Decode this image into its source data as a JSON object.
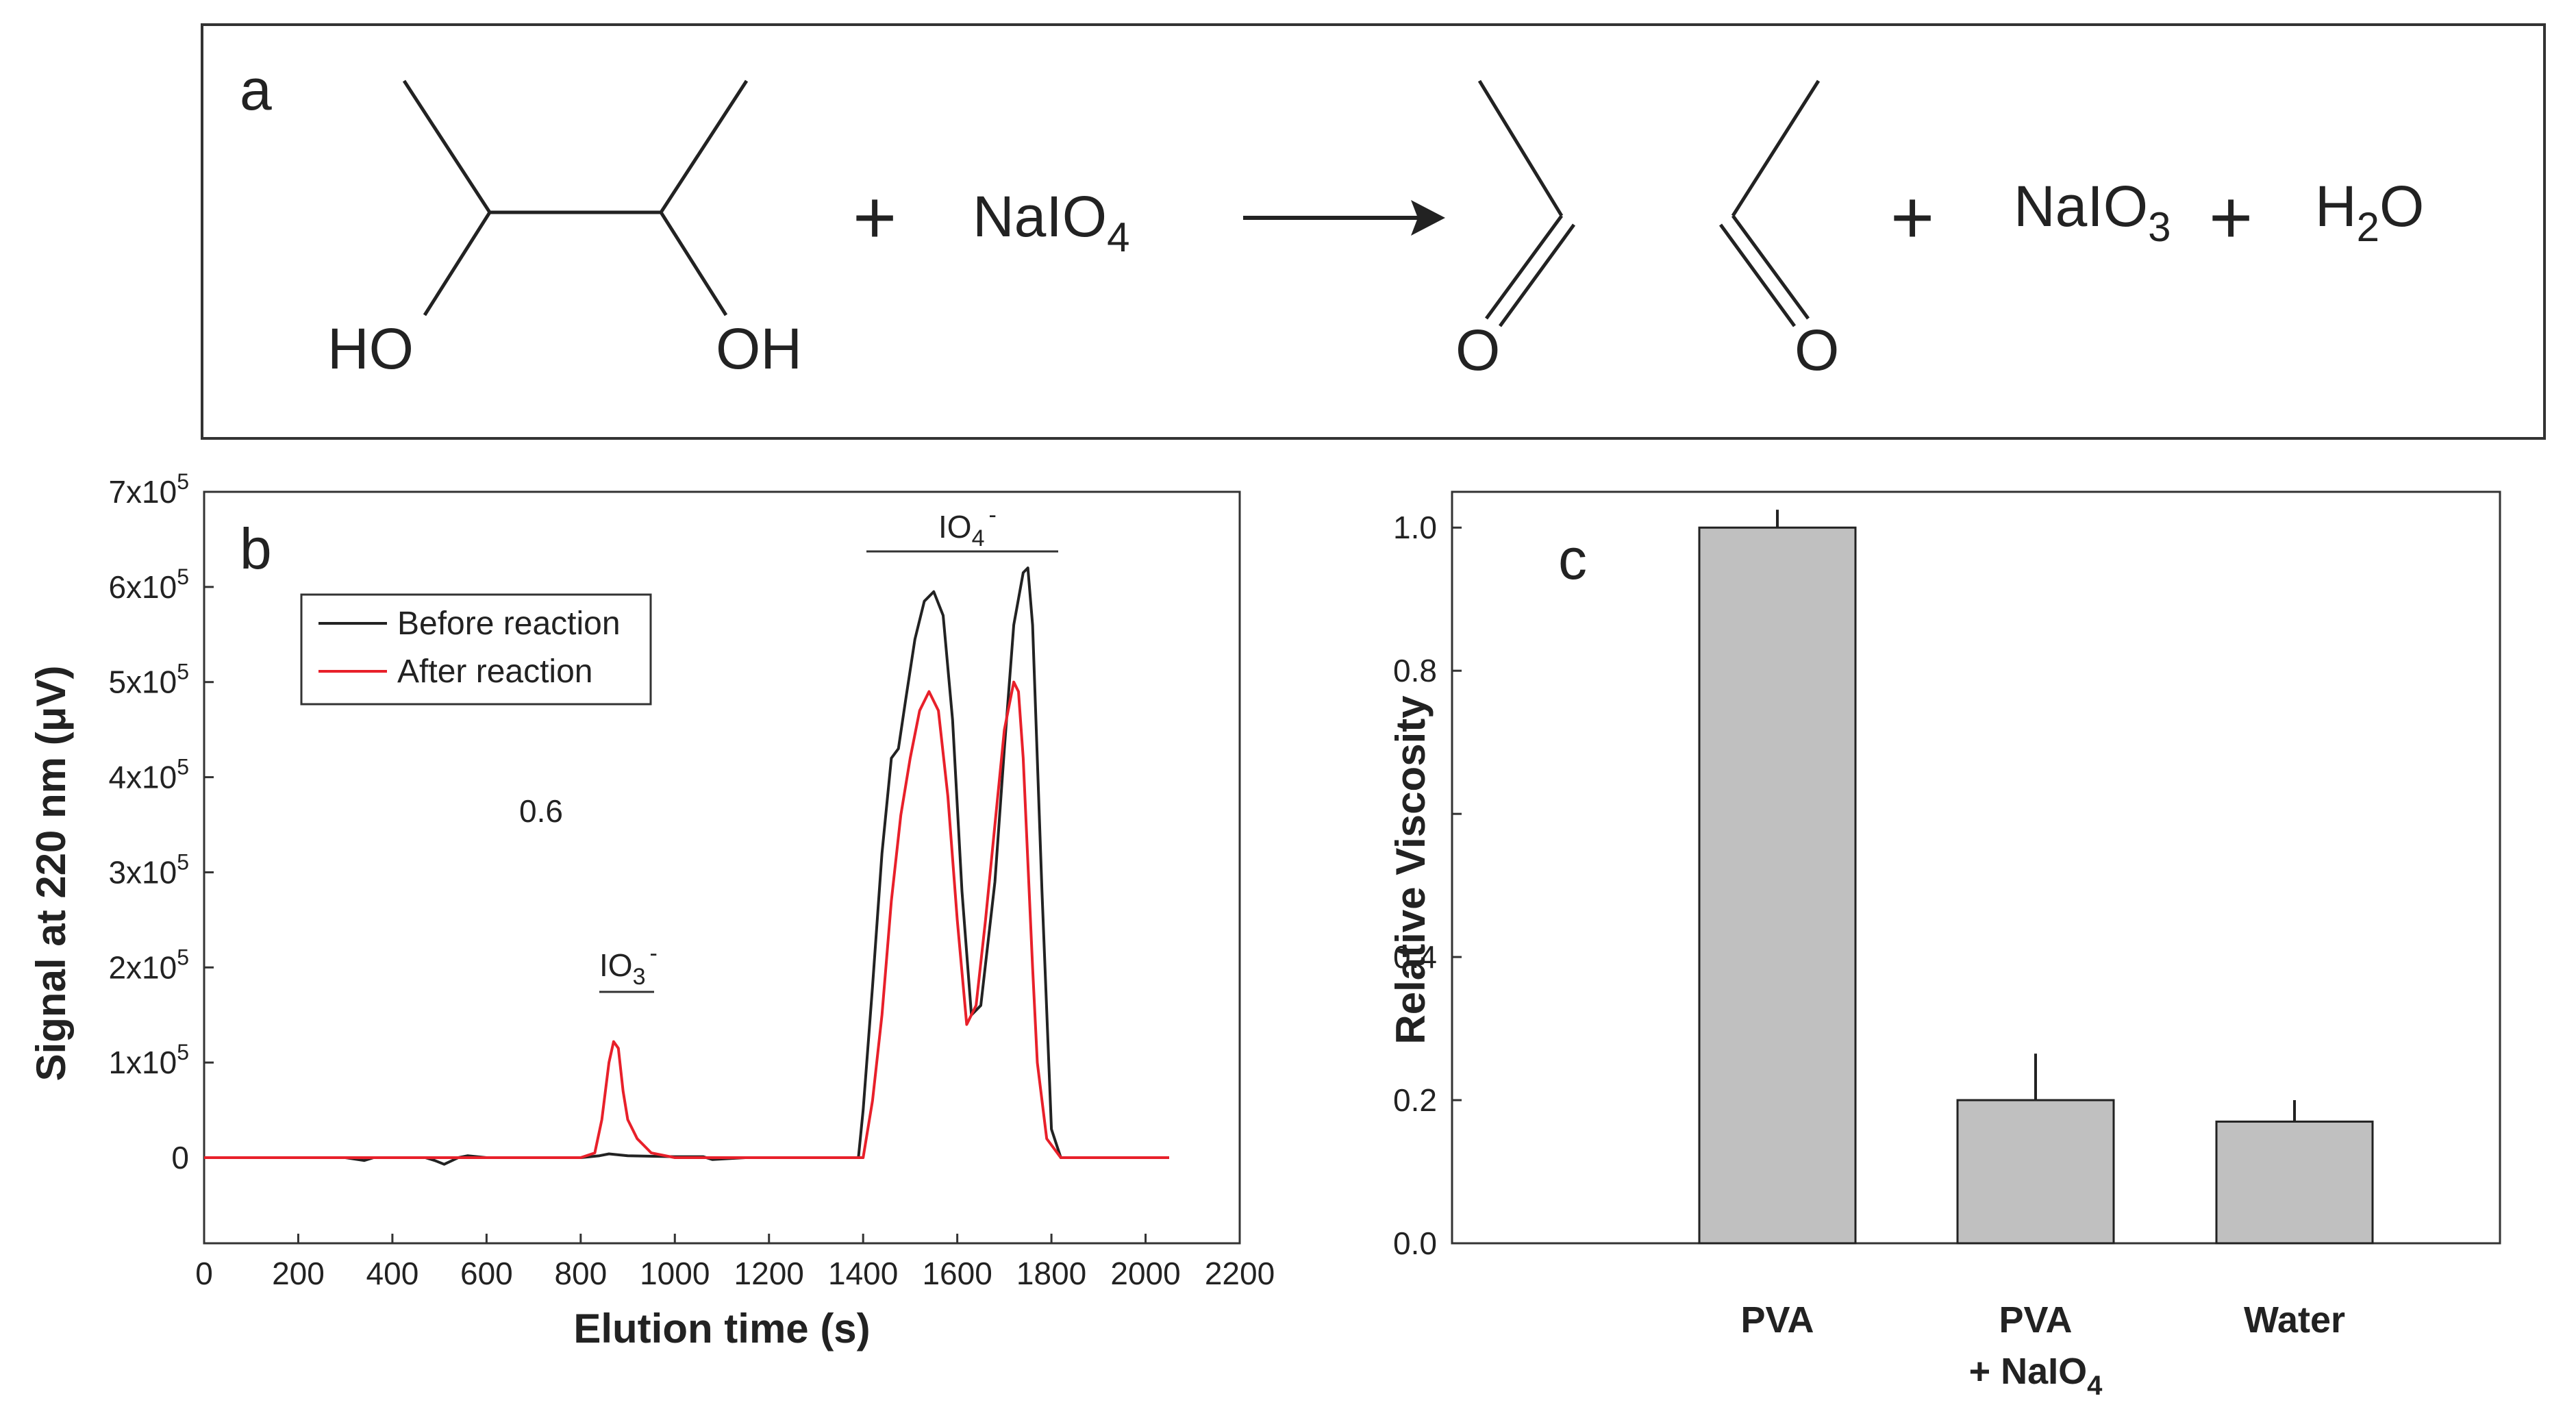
{
  "panel_a": {
    "letter": "a",
    "ho_label": "HO",
    "oh_label": "OH",
    "plus": "+",
    "periodate": {
      "main": "NaIO",
      "sub": "4"
    },
    "o_label": "O",
    "iodate": {
      "main": "NaIO",
      "sub": "3"
    },
    "water": {
      "h": "H",
      "sub": "2",
      "o": "O"
    }
  },
  "chart_data": [
    {
      "panel": "b",
      "type": "line",
      "xlabel": "Elution time (s)",
      "ylabel": "Signal at 220 nm (μV)",
      "xlim": [
        0,
        2200
      ],
      "ylim": [
        -90000,
        700000
      ],
      "x_ticks": [
        "0",
        "200",
        "400",
        "600",
        "800",
        "1000",
        "1200",
        "1400",
        "1600",
        "1800",
        "2000",
        "2200"
      ],
      "x_tick_values": [
        0,
        200,
        400,
        600,
        800,
        1000,
        1200,
        1400,
        1600,
        1800,
        2000,
        2200
      ],
      "y_ticks": [
        {
          "value": 0,
          "base": "0",
          "exp": ""
        },
        {
          "value": 100000,
          "base": "1x10",
          "exp": "5"
        },
        {
          "value": 200000,
          "base": "2x10",
          "exp": "5"
        },
        {
          "value": 300000,
          "base": "3x10",
          "exp": "5"
        },
        {
          "value": 400000,
          "base": "4x10",
          "exp": "5"
        },
        {
          "value": 500000,
          "base": "5x10",
          "exp": "5"
        },
        {
          "value": 600000,
          "base": "6x10",
          "exp": "5"
        },
        {
          "value": 700000,
          "base": "7x10",
          "exp": "5"
        }
      ],
      "legend": {
        "position": "top-left"
      },
      "annotations": {
        "stray_label": "0.6",
        "io3": {
          "main": "IO",
          "sub": "3",
          "sup": "-"
        },
        "io4": {
          "main": "IO",
          "sub": "4",
          "sup": "-"
        }
      },
      "series": [
        {
          "name": "Before reaction",
          "color": "#222222",
          "x": [
            0,
            300,
            340,
            360,
            470,
            490,
            510,
            540,
            560,
            600,
            700,
            800,
            840,
            860,
            900,
            1000,
            1060,
            1080,
            1150,
            1200,
            1300,
            1390,
            1400,
            1420,
            1440,
            1460,
            1475,
            1490,
            1510,
            1530,
            1550,
            1570,
            1590,
            1610,
            1630,
            1650,
            1680,
            1700,
            1720,
            1740,
            1750,
            1760,
            1780,
            1800,
            1820,
            1900,
            2000,
            2050
          ],
          "y": [
            0,
            0,
            -3000,
            0,
            0,
            -3000,
            -7000,
            0,
            2000,
            0,
            0,
            0,
            2000,
            4000,
            2000,
            1000,
            1000,
            -2000,
            0,
            0,
            0,
            0,
            50000,
            180000,
            320000,
            420000,
            430000,
            480000,
            545000,
            585000,
            595000,
            570000,
            460000,
            280000,
            150000,
            160000,
            290000,
            430000,
            560000,
            615000,
            620000,
            560000,
            280000,
            30000,
            0,
            0,
            0,
            0
          ]
        },
        {
          "name": "After reaction",
          "color": "#e8202a",
          "x": [
            0,
            800,
            830,
            845,
            860,
            870,
            880,
            890,
            900,
            920,
            950,
            1000,
            1100,
            1200,
            1300,
            1400,
            1420,
            1440,
            1460,
            1480,
            1500,
            1520,
            1540,
            1560,
            1580,
            1600,
            1620,
            1640,
            1660,
            1680,
            1700,
            1720,
            1730,
            1740,
            1760,
            1770,
            1790,
            1820,
            1900,
            2050
          ],
          "y": [
            0,
            0,
            5000,
            40000,
            100000,
            122000,
            115000,
            70000,
            40000,
            20000,
            5000,
            0,
            0,
            0,
            0,
            0,
            60000,
            150000,
            270000,
            360000,
            420000,
            470000,
            490000,
            470000,
            380000,
            250000,
            140000,
            160000,
            250000,
            350000,
            450000,
            500000,
            490000,
            420000,
            200000,
            100000,
            20000,
            0,
            0,
            0
          ]
        }
      ]
    },
    {
      "panel": "c",
      "type": "bar",
      "ylabel": "Relative Viscosity",
      "xlabel": "",
      "ylim": [
        0,
        1.05
      ],
      "y_ticks": [
        "0.0",
        "0.2",
        "0.4",
        "0.8",
        "1.0"
      ],
      "y_tick_values": [
        0,
        0.2,
        0.4,
        0.8,
        1.0
      ],
      "categories": [
        "PVA",
        "PVA + NaIO4",
        "Water"
      ],
      "category_labels": [
        {
          "line1": "PVA",
          "line2_main": "",
          "line2_sub": ""
        },
        {
          "line1": "PVA",
          "line2_main": "+ NaIO",
          "line2_sub": "4"
        },
        {
          "line1": "Water",
          "line2_main": "",
          "line2_sub": ""
        }
      ],
      "values": [
        1.0,
        0.2,
        0.17
      ],
      "errors": [
        0.025,
        0.065,
        0.03
      ],
      "bar_color": "#c0c0c0"
    }
  ],
  "colors": {
    "axis": "#333333",
    "frame": "#222222",
    "bar": "#c0c0c0"
  }
}
